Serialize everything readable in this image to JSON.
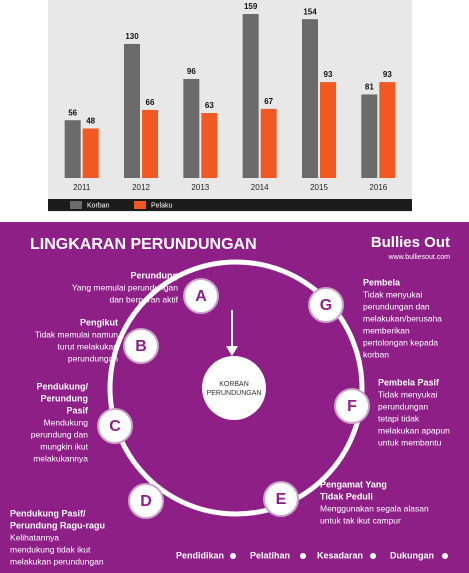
{
  "chart_data": {
    "type": "bar",
    "categories": [
      "2011",
      "2012",
      "2013",
      "2014",
      "2015",
      "2016"
    ],
    "series": [
      {
        "name": "Korban",
        "color": "#6b6b6b",
        "values": [
          56,
          130,
          96,
          159,
          154,
          81
        ]
      },
      {
        "name": "Pelaku",
        "color": "#f05a22",
        "values": [
          48,
          66,
          63,
          67,
          93,
          93
        ]
      }
    ]
  },
  "diagram": {
    "title": "LINGKARAN PERUNDUNGAN",
    "logo": {
      "name": "Bullies Out",
      "url": "www.bulliesout.com"
    },
    "center": [
      "KORBAN",
      "PERUNDUNGAN"
    ],
    "nodes": [
      {
        "letter": "A",
        "title": [
          "Perundung"
        ],
        "description": [
          "Yang memulai perundungan",
          "dan berperan aktif"
        ]
      },
      {
        "letter": "B",
        "title": [
          "Pengikut"
        ],
        "description": [
          "Tidak memulai namun",
          "turut melakukan",
          "perundungan"
        ]
      },
      {
        "letter": "C",
        "title": [
          "Pendukung/",
          "Perundung",
          "Pasif"
        ],
        "description": [
          "Mendukung",
          "perundung dan",
          "mungkin ikut",
          "melakukannya"
        ]
      },
      {
        "letter": "D",
        "title": [
          "Pendukung Pasif/",
          "Perundung Ragu-ragu"
        ],
        "description": [
          "Kelihatannya",
          "mendukung tidak ikut",
          "melakukan perundungan"
        ]
      },
      {
        "letter": "E",
        "title": [
          "Pengamat Yang",
          "Tidak Peduli"
        ],
        "description": [
          "Menggunakan segala alasan",
          "untuk tak ikut campur"
        ]
      },
      {
        "letter": "F",
        "title": [
          "Pembela Pasif"
        ],
        "description": [
          "Tidak menyukai",
          "perundungan",
          "tetapi tidak",
          "melakukan apapun",
          "untuk membantu"
        ]
      },
      {
        "letter": "G",
        "title": [
          "Pembela"
        ],
        "description": [
          "Tidak menyukai",
          "perundungan dan",
          "melakukan/berusaha",
          "memberikan",
          "pertolongan kepada",
          "korban"
        ]
      }
    ],
    "footer": [
      "Pendidikan",
      "Pelatihan",
      "Kesadaran",
      "Dukungan"
    ]
  }
}
